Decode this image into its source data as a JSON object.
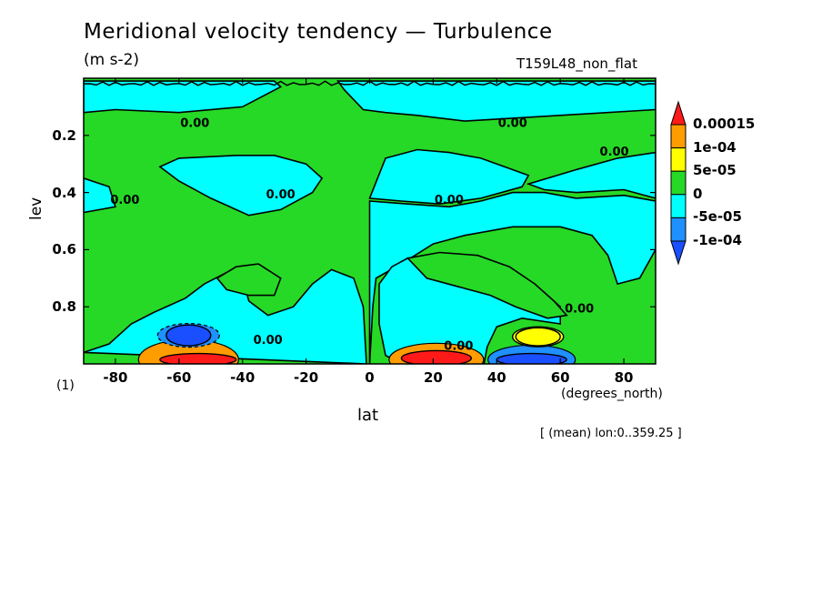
{
  "header": {
    "title": "Meridional velocity tendency — Turbulence",
    "units": "(m s-2)",
    "run_name": "T159L48_non_flat"
  },
  "footer": {
    "scale_note": "(1)",
    "x_units": "(degrees_north)",
    "mean_note": "[ (mean) lon:0..359.25 ]"
  },
  "chart_data": {
    "type": "heatmap",
    "title": "Meridional velocity tendency — Turbulence",
    "subtitle": "(m s-2)",
    "xlabel": "lat",
    "ylabel": "lev",
    "xlim": [
      -90,
      90
    ],
    "ylim": [
      1.0,
      0.0
    ],
    "x_ticks": [
      -80,
      -60,
      -40,
      -20,
      0,
      20,
      40,
      60,
      80
    ],
    "x_tick_labels": [
      "-80",
      "-60",
      "-40",
      "-20",
      "0",
      "20",
      "40",
      "60",
      "80"
    ],
    "y_ticks": [
      0.2,
      0.4,
      0.6,
      0.8
    ],
    "y_tick_labels": [
      "0.2",
      "0.4",
      "0.6",
      "0.8"
    ],
    "contour_labels": [
      {
        "text": "0.00",
        "lat": -55,
        "lev": 0.17
      },
      {
        "text": "0.00",
        "lat": 45,
        "lev": 0.17
      },
      {
        "text": "0.00",
        "lat": 77,
        "lev": 0.27
      },
      {
        "text": "0.00",
        "lat": -77,
        "lev": 0.44
      },
      {
        "text": "0.00",
        "lat": -28,
        "lev": 0.42
      },
      {
        "text": "0.00",
        "lat": 25,
        "lev": 0.44
      },
      {
        "text": "0.00",
        "lat": -32,
        "lev": 0.93
      },
      {
        "text": "0.00",
        "lat": 28,
        "lev": 0.95
      },
      {
        "text": "0.00",
        "lat": 66,
        "lev": 0.82
      }
    ],
    "colorbar": {
      "levels": [
        "0.00015",
        "1e-04",
        "5e-05",
        "0",
        "-5e-05",
        "-1e-04"
      ],
      "colors": {
        "gt_0.00015": "#ff1a1a",
        "0.0001_to_0.00015": "#ff9d00",
        "5e-05_to_0.0001": "#ffff00",
        "0_to_5e-05": "#26d926",
        "-5e-05_to_0": "#00ffff",
        "-1e-04_to_-5e-05": "#1e90ff",
        "lt_-1e-04": "#1a4fff"
      }
    },
    "features": [
      {
        "name": "negative_core",
        "lat_range": [
          -64,
          -50
        ],
        "lev_range": [
          0.87,
          0.93
        ]
      },
      {
        "name": "positive_core",
        "lat_range": [
          -66,
          -42
        ],
        "lev_range": [
          0.97,
          1.0
        ]
      },
      {
        "name": "positive_core",
        "lat_range": [
          10,
          32
        ],
        "lev_range": [
          0.96,
          1.0
        ]
      },
      {
        "name": "negative_core",
        "lat_range": [
          40,
          62
        ],
        "lev_range": [
          0.97,
          1.0
        ]
      },
      {
        "name": "positive_core",
        "lat_range": [
          46,
          60
        ],
        "lev_range": [
          0.88,
          0.93
        ]
      }
    ]
  }
}
